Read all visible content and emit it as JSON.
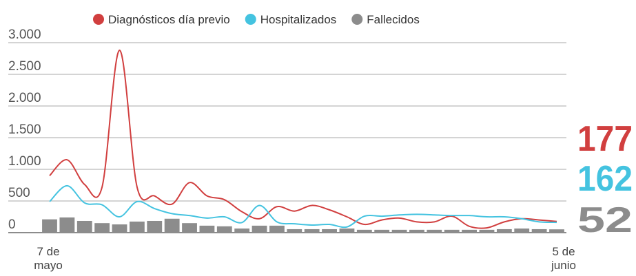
{
  "chart_data": {
    "type": "line",
    "categories": [
      "7 de mayo",
      null,
      null,
      null,
      null,
      null,
      null,
      null,
      null,
      null,
      null,
      null,
      null,
      null,
      null,
      null,
      null,
      null,
      null,
      null,
      null,
      null,
      null,
      null,
      null,
      null,
      null,
      null,
      null,
      "5 de junio"
    ],
    "series": [
      {
        "name": "Diagnósticos día previo",
        "color": "#d13f3f",
        "kind": "line",
        "values": [
          900,
          1150,
          760,
          720,
          2880,
          720,
          580,
          450,
          790,
          580,
          520,
          330,
          220,
          410,
          340,
          430,
          360,
          250,
          130,
          200,
          230,
          170,
          170,
          260,
          100,
          75,
          170,
          220,
          200,
          177
        ]
      },
      {
        "name": "Hospitalizados",
        "color": "#44c3e0",
        "kind": "line",
        "values": [
          490,
          740,
          470,
          440,
          250,
          490,
          380,
          300,
          270,
          230,
          250,
          160,
          430,
          170,
          140,
          120,
          130,
          90,
          260,
          260,
          280,
          290,
          280,
          270,
          270,
          250,
          250,
          220,
          170,
          162
        ]
      },
      {
        "name": "Fallecidos",
        "color": "#8c8c8c",
        "kind": "bar",
        "values": [
          210,
          240,
          185,
          150,
          130,
          175,
          185,
          220,
          150,
          110,
          100,
          65,
          110,
          110,
          55,
          55,
          55,
          65,
          45,
          45,
          45,
          45,
          45,
          45,
          45,
          45,
          55,
          65,
          55,
          52
        ]
      }
    ],
    "ylim": [
      0,
      3000
    ],
    "yticks": [
      {
        "value": 0,
        "label": "0"
      },
      {
        "value": 500,
        "label": "500"
      },
      {
        "value": 1000,
        "label": "1.000"
      },
      {
        "value": 1500,
        "label": "1.500"
      },
      {
        "value": 2000,
        "label": "2.000"
      },
      {
        "value": 2500,
        "label": "2.500"
      },
      {
        "value": 3000,
        "label": "3.000"
      }
    ],
    "grid": true
  }
}
